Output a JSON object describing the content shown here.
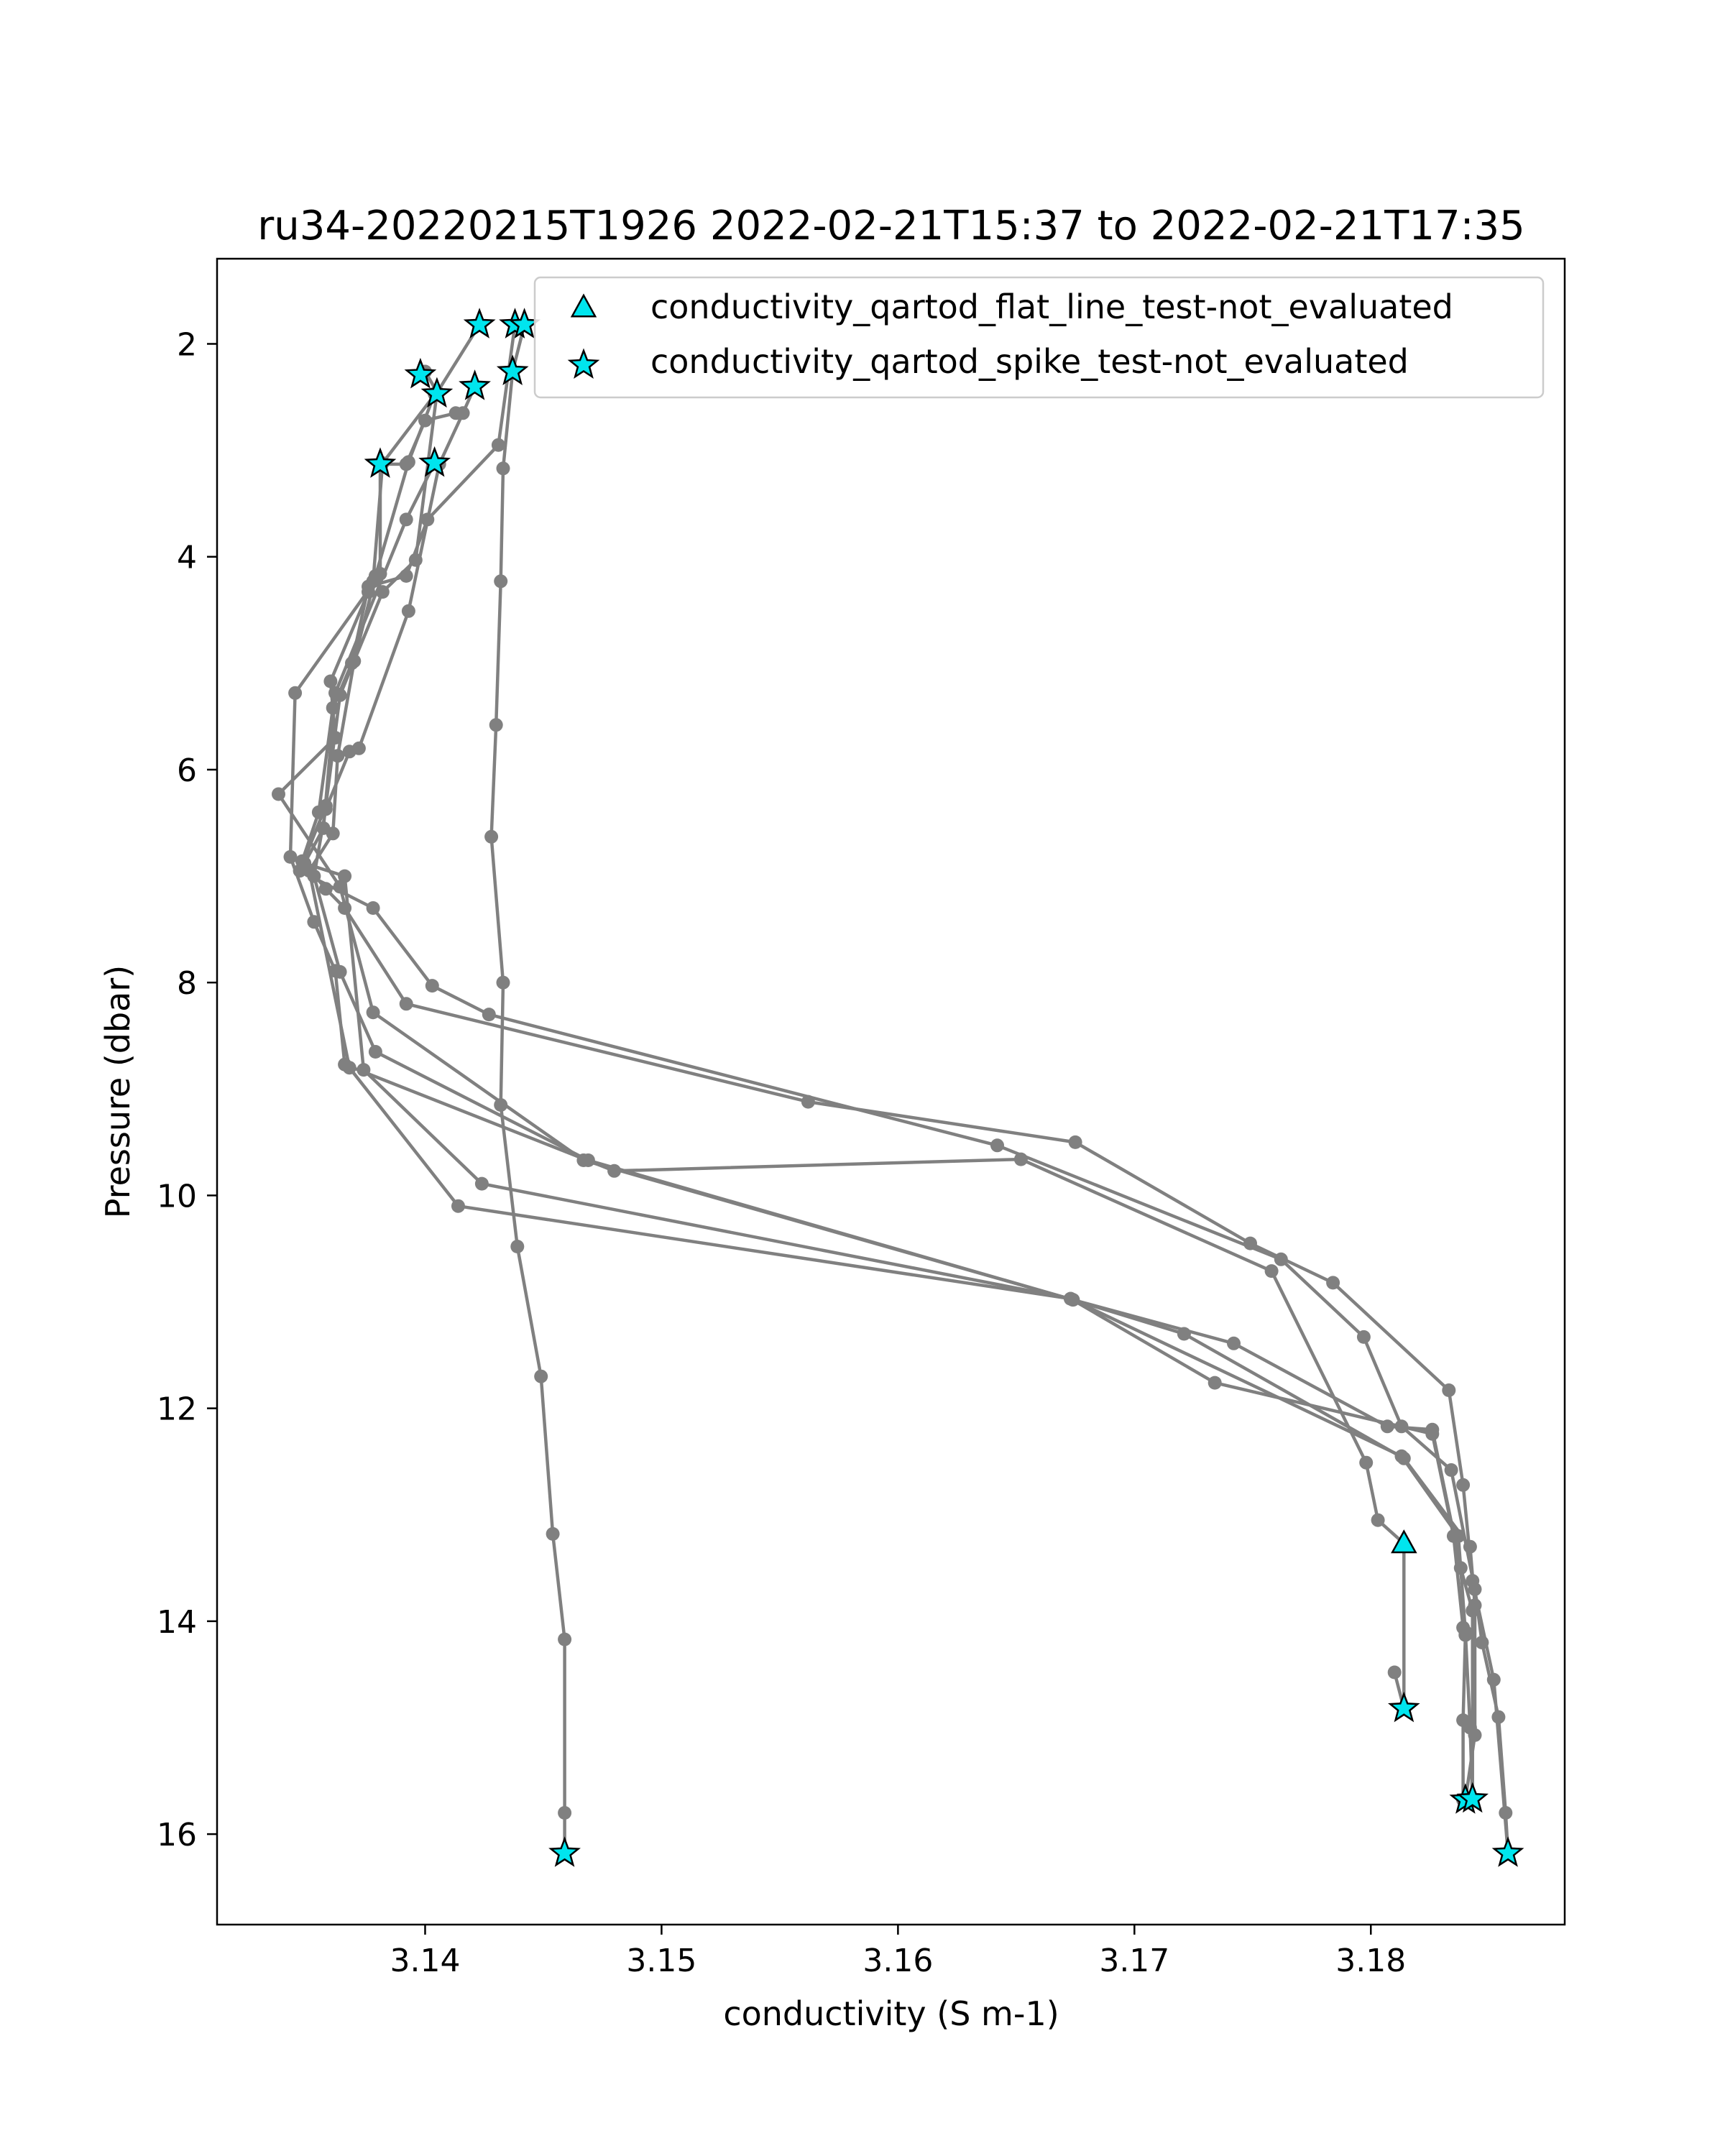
{
  "chart_data": {
    "type": "scatter",
    "title": "ru34-20220215T1926 2022-02-21T15:37 to 2022-02-21T17:35",
    "xlabel": "conductivity (S m-1)",
    "ylabel": "Pressure (dbar)",
    "xlim": [
      3.1312,
      3.1882
    ],
    "ylim": [
      16.85,
      1.2
    ],
    "y_inverted": true,
    "grid": false,
    "legend_position": "top-right",
    "x_ticks": [
      {
        "value": 3.14,
        "label": "3.14"
      },
      {
        "value": 3.15,
        "label": "3.15"
      },
      {
        "value": 3.16,
        "label": "3.16"
      },
      {
        "value": 3.17,
        "label": "3.17"
      },
      {
        "value": 3.18,
        "label": "3.18"
      }
    ],
    "y_ticks": [
      {
        "value": 2,
        "label": "2"
      },
      {
        "value": 4,
        "label": "4"
      },
      {
        "value": 6,
        "label": "6"
      },
      {
        "value": 8,
        "label": "8"
      },
      {
        "value": 10,
        "label": "10"
      },
      {
        "value": 12,
        "label": "12"
      },
      {
        "value": 14,
        "label": "14"
      },
      {
        "value": 16,
        "label": "16"
      }
    ],
    "line_color": "#808080",
    "marker_color": "#00e5ee",
    "legend": [
      {
        "label": "conductivity_qartod_flat_line_test-not_evaluated",
        "marker": "triangle"
      },
      {
        "label": "conductivity_qartod_spike_test-not_evaluated",
        "marker": "star"
      }
    ],
    "profiles": [
      {
        "points": [
          [
            3.1438,
            1.82
          ],
          [
            3.1431,
            2.95
          ],
          [
            3.1401,
            3.65
          ],
          [
            3.1392,
            4.18
          ],
          [
            3.1376,
            4.28
          ],
          [
            3.1369,
            5.0
          ],
          [
            3.1361,
            5.42
          ],
          [
            3.1355,
            6.4
          ],
          [
            3.1348,
            6.86
          ],
          [
            3.1358,
            7.12
          ],
          [
            3.1366,
            7.3
          ],
          [
            3.1392,
            8.2
          ],
          [
            3.1562,
            9.12
          ],
          [
            3.1675,
            9.5
          ],
          [
            3.1749,
            10.45
          ],
          [
            3.1784,
            10.82
          ],
          [
            3.1833,
            11.83
          ],
          [
            3.1839,
            12.72
          ],
          [
            3.1843,
            13.62
          ],
          [
            3.1852,
            14.55
          ],
          [
            3.1858,
            16.18
          ]
        ]
      },
      {
        "points": [
          [
            3.1423,
            1.82
          ],
          [
            3.1405,
            2.46
          ],
          [
            3.1396,
            4.03
          ],
          [
            3.1382,
            4.33
          ],
          [
            3.1364,
            5.3
          ],
          [
            3.1358,
            6.34
          ],
          [
            3.1347,
            6.95
          ],
          [
            3.1378,
            7.3
          ],
          [
            3.1403,
            8.03
          ],
          [
            3.1427,
            8.3
          ],
          [
            3.1642,
            9.53
          ],
          [
            3.1762,
            10.6
          ],
          [
            3.1797,
            11.33
          ],
          [
            3.1813,
            12.17
          ],
          [
            3.1834,
            12.58
          ],
          [
            3.1844,
            13.7
          ],
          [
            3.1847,
            14.2
          ],
          [
            3.1854,
            14.9
          ],
          [
            3.1857,
            15.8
          ],
          [
            3.1858,
            16.18
          ]
        ]
      },
      {
        "points": [
          [
            3.1398,
            2.29
          ],
          [
            3.14,
            2.26
          ],
          [
            3.1405,
            2.45
          ],
          [
            3.1382,
            3.12
          ],
          [
            3.1378,
            4.23
          ],
          [
            3.1376,
            4.33
          ],
          [
            3.136,
            5.17
          ],
          [
            3.1362,
            5.7
          ],
          [
            3.1338,
            6.23
          ],
          [
            3.1364,
            7.1
          ],
          [
            3.1378,
            8.28
          ],
          [
            3.1467,
            9.67
          ],
          [
            3.1674,
            10.98
          ],
          [
            3.1721,
            11.3
          ],
          [
            3.1814,
            12.47
          ],
          [
            3.1842,
            13.3
          ],
          [
            3.1844,
            13.85
          ],
          [
            3.1844,
            15.07
          ],
          [
            3.184,
            15.68
          ]
        ]
      },
      {
        "points": [
          [
            3.1413,
            2.65
          ],
          [
            3.14,
            2.72
          ],
          [
            3.1392,
            3.13
          ],
          [
            3.1381,
            3.13
          ],
          [
            3.1381,
            4.16
          ],
          [
            3.1345,
            5.28
          ],
          [
            3.1343,
            6.82
          ],
          [
            3.1353,
            7.43
          ],
          [
            3.1362,
            7.89
          ],
          [
            3.1366,
            8.77
          ],
          [
            3.148,
            9.77
          ],
          [
            3.1652,
            9.66
          ],
          [
            3.1758,
            10.71
          ],
          [
            3.1798,
            12.51
          ],
          [
            3.1803,
            13.05
          ],
          [
            3.1814,
            13.27
          ]
        ]
      },
      {
        "points": [
          [
            3.1442,
            1.82
          ],
          [
            3.1437,
            2.26
          ],
          [
            3.1433,
            3.17
          ],
          [
            3.1432,
            4.23
          ],
          [
            3.143,
            5.58
          ],
          [
            3.1428,
            6.63
          ],
          [
            3.1433,
            8.0
          ],
          [
            3.1432,
            9.15
          ],
          [
            3.1439,
            10.48
          ],
          [
            3.1449,
            11.7
          ],
          [
            3.1454,
            13.18
          ],
          [
            3.1459,
            14.17
          ],
          [
            3.1459,
            15.8
          ],
          [
            3.1459,
            16.18
          ]
        ]
      },
      {
        "points": [
          [
            3.1421,
            2.4
          ],
          [
            3.1416,
            2.65
          ],
          [
            3.1406,
            3.13
          ],
          [
            3.1393,
            4.51
          ],
          [
            3.1372,
            5.8
          ],
          [
            3.1368,
            5.83
          ],
          [
            3.1358,
            6.37
          ],
          [
            3.1353,
            7.0
          ],
          [
            3.1364,
            7.9
          ],
          [
            3.1379,
            8.65
          ],
          [
            3.1469,
            9.67
          ],
          [
            3.1674,
            10.98
          ],
          [
            3.1742,
            11.39
          ],
          [
            3.1807,
            12.17
          ],
          [
            3.1826,
            12.2
          ],
          [
            3.1838,
            13.5
          ],
          [
            3.1843,
            13.9
          ],
          [
            3.1843,
            15.67
          ]
        ]
      },
      {
        "points": [
          [
            3.1404,
            3.12
          ],
          [
            3.1392,
            3.65
          ],
          [
            3.1362,
            5.28
          ],
          [
            3.1357,
            6.55
          ],
          [
            3.1349,
            6.88
          ],
          [
            3.1366,
            7.0
          ],
          [
            3.1374,
            8.82
          ],
          [
            3.1424,
            9.89
          ],
          [
            3.1673,
            10.97
          ],
          [
            3.1734,
            11.76
          ],
          [
            3.1826,
            12.24
          ],
          [
            3.1835,
            13.2
          ],
          [
            3.1839,
            14.06
          ],
          [
            3.184,
            14.13
          ],
          [
            3.1839,
            14.93
          ],
          [
            3.1839,
            15.68
          ]
        ]
      },
      {
        "points": [
          [
            3.1404,
            2.47
          ],
          [
            3.1393,
            3.11
          ],
          [
            3.1379,
            4.18
          ],
          [
            3.137,
            4.98
          ],
          [
            3.1363,
            5.87
          ],
          [
            3.1361,
            6.6
          ],
          [
            3.1351,
            6.95
          ],
          [
            3.1368,
            8.8
          ],
          [
            3.1414,
            10.1
          ],
          [
            3.1673,
            10.97
          ],
          [
            3.1813,
            12.45
          ],
          [
            3.1837,
            13.2
          ],
          [
            3.184,
            14.1
          ],
          [
            3.1842,
            15.0
          ],
          [
            3.1843,
            15.67
          ]
        ]
      },
      {
        "points": [
          [
            3.1814,
            13.27
          ],
          [
            3.1814,
            14.82
          ]
        ]
      },
      {
        "points": [
          [
            3.181,
            14.48
          ],
          [
            3.1814,
            14.82
          ]
        ]
      }
    ],
    "flat_line_test_points": [
      [
        3.1814,
        13.27
      ]
    ],
    "spike_test_points": [
      [
        3.1423,
        1.82
      ],
      [
        3.1438,
        1.82
      ],
      [
        3.1442,
        1.82
      ],
      [
        3.1398,
        2.29
      ],
      [
        3.1437,
        2.26
      ],
      [
        3.1421,
        2.4
      ],
      [
        3.1405,
        2.47
      ],
      [
        3.1381,
        3.13
      ],
      [
        3.1404,
        3.12
      ],
      [
        3.1814,
        14.82
      ],
      [
        3.184,
        15.68
      ],
      [
        3.1843,
        15.67
      ],
      [
        3.1459,
        16.18
      ],
      [
        3.1858,
        16.18
      ]
    ]
  }
}
